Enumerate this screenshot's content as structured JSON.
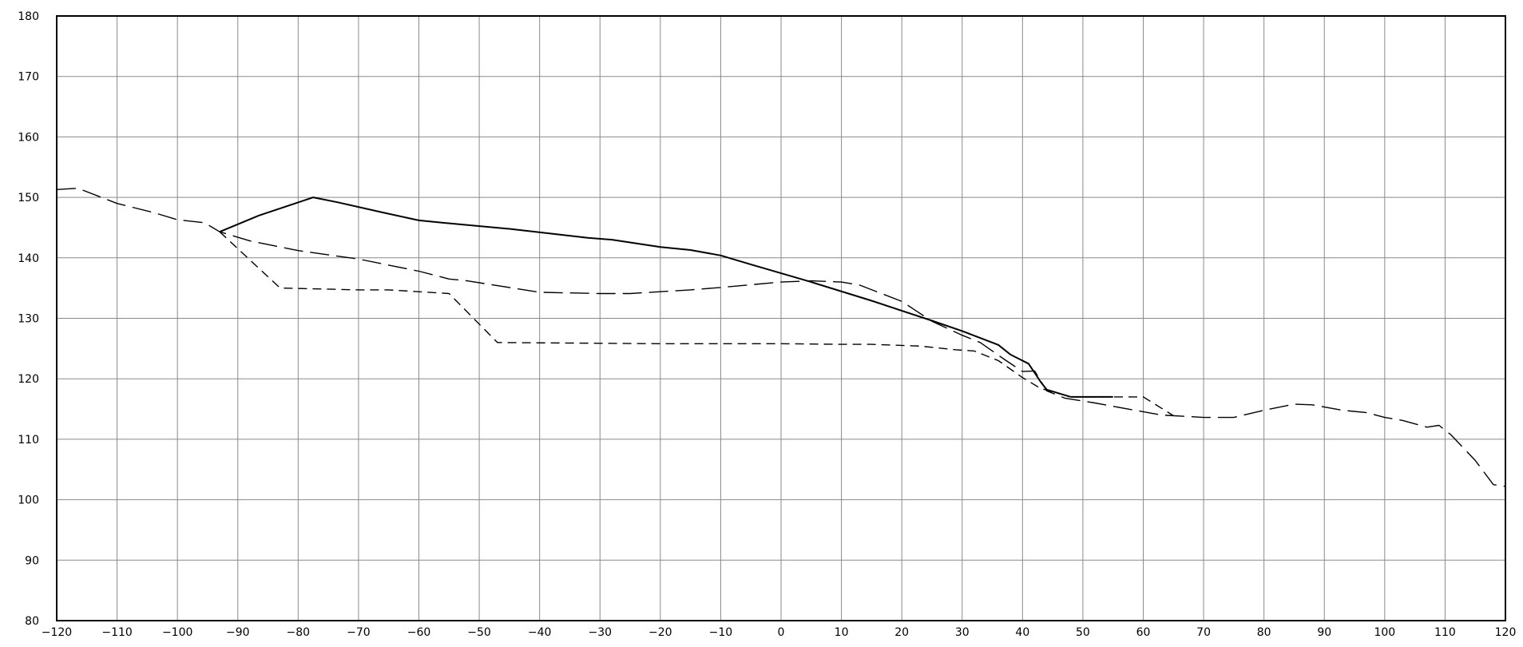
{
  "chart_data": {
    "type": "line",
    "title": "",
    "xlabel": "",
    "ylabel": "",
    "xlim": [
      -120,
      120
    ],
    "ylim": [
      80,
      180
    ],
    "x_ticks": [
      -120,
      -110,
      -100,
      -90,
      -80,
      -70,
      -60,
      -50,
      -40,
      -30,
      -20,
      -10,
      0,
      10,
      20,
      30,
      40,
      50,
      60,
      70,
      80,
      90,
      100,
      110,
      120
    ],
    "x_tick_labels": [
      "−120",
      "−110",
      "−100",
      "−90",
      "−80",
      "−70",
      "−60",
      "−50",
      "−40",
      "−30",
      "−20",
      "−10",
      "0",
      "10",
      "20",
      "30",
      "40",
      "50",
      "60",
      "70",
      "80",
      "90",
      "100",
      "110",
      "120"
    ],
    "y_ticks": [
      80,
      90,
      100,
      110,
      120,
      130,
      140,
      150,
      160,
      170,
      180
    ],
    "y_tick_labels": [
      "80",
      "90",
      "100",
      "110",
      "120",
      "130",
      "140",
      "150",
      "160",
      "170",
      "180"
    ],
    "grid": true,
    "legend": "none",
    "series": [
      {
        "style": "solid",
        "color": "#000000",
        "points": [
          [
            -93,
            144.3
          ],
          [
            -86.5,
            147
          ],
          [
            -77.5,
            150
          ],
          [
            -73.5,
            149.2
          ],
          [
            -66,
            147.5
          ],
          [
            -60,
            146.2
          ],
          [
            -56,
            145.8
          ],
          [
            -45,
            144.8
          ],
          [
            -32,
            143.3
          ],
          [
            -28,
            143
          ],
          [
            -20,
            141.8
          ],
          [
            -15,
            141.3
          ],
          [
            -10,
            140.4
          ],
          [
            -5,
            138.9
          ],
          [
            5,
            136
          ],
          [
            15,
            132.9
          ],
          [
            25,
            129.6
          ],
          [
            30,
            127.9
          ],
          [
            36,
            125.6
          ],
          [
            38,
            124
          ],
          [
            41,
            122.5
          ],
          [
            43,
            119.5
          ],
          [
            44,
            118.2
          ],
          [
            48,
            117
          ]
        ]
      },
      {
        "style": "solid",
        "color": "#000000",
        "points": [
          [
            48,
            117
          ],
          [
            55,
            117
          ]
        ]
      },
      {
        "style": "long-dash",
        "color": "#000000",
        "points": [
          [
            -120,
            151.3
          ],
          [
            -116.5,
            151.5
          ],
          [
            -110,
            149
          ],
          [
            -104,
            147.5
          ],
          [
            -100,
            146.3
          ],
          [
            -95.5,
            145.8
          ],
          [
            -93,
            144.3
          ],
          [
            -88,
            142.8
          ],
          [
            -80,
            141.2
          ],
          [
            -70,
            139.8
          ],
          [
            -60,
            137.8
          ],
          [
            -55,
            136.5
          ],
          [
            -52,
            136.2
          ],
          [
            -40,
            134.3
          ],
          [
            -30,
            134.1
          ],
          [
            -25,
            134.1
          ],
          [
            -15,
            134.7
          ],
          [
            -10,
            135.1
          ],
          [
            0,
            136
          ],
          [
            5,
            136.2
          ],
          [
            10,
            136
          ],
          [
            13,
            135.5
          ],
          [
            20,
            132.8
          ],
          [
            25,
            129.5
          ],
          [
            30,
            127.2
          ],
          [
            33,
            126
          ],
          [
            37,
            123.2
          ],
          [
            40,
            121.2
          ],
          [
            42,
            121.3
          ],
          [
            44,
            118
          ],
          [
            47,
            116.8
          ],
          [
            52,
            116
          ],
          [
            58,
            114.9
          ],
          [
            63,
            114
          ],
          [
            70,
            113.6
          ],
          [
            75,
            113.6
          ],
          [
            80,
            114.8
          ],
          [
            85,
            115.8
          ],
          [
            88,
            115.7
          ],
          [
            93,
            114.8
          ],
          [
            97,
            114.4
          ],
          [
            100,
            113.6
          ],
          [
            103,
            113.1
          ],
          [
            107,
            112
          ],
          [
            109,
            112.3
          ],
          [
            111,
            110.7
          ],
          [
            115,
            106.5
          ],
          [
            118,
            102.5
          ],
          [
            120,
            102.2
          ]
        ]
      },
      {
        "style": "short-dash",
        "color": "#000000",
        "points": [
          [
            -93,
            144.3
          ],
          [
            -83,
            135
          ],
          [
            -70,
            134.7
          ],
          [
            -65,
            134.7
          ],
          [
            -55,
            134.1
          ],
          [
            -47,
            126
          ],
          [
            -20,
            125.8
          ],
          [
            0,
            125.8
          ],
          [
            10,
            125.7
          ],
          [
            15,
            125.7
          ],
          [
            23,
            125.4
          ],
          [
            29,
            124.8
          ],
          [
            32,
            124.6
          ],
          [
            36,
            123
          ],
          [
            40,
            120.2
          ],
          [
            43,
            118.4
          ],
          [
            48,
            117
          ],
          [
            60,
            117
          ],
          [
            65,
            113.9
          ]
        ]
      }
    ]
  }
}
